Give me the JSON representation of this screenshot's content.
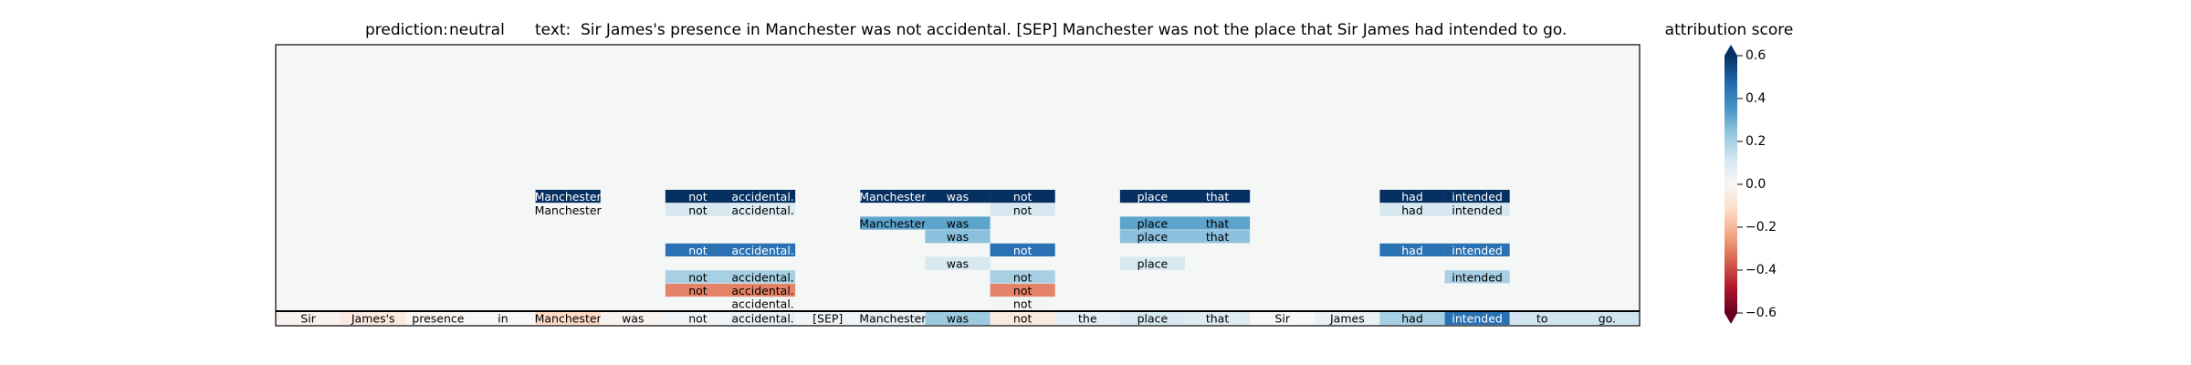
{
  "header": {
    "prediction_label": "prediction:",
    "prediction_value": "neutral",
    "text_label": "text:",
    "text_value": "Sir James's presence in Manchester was not accidental. [SEP] Manchester was not the place that Sir James had intended to go."
  },
  "colorbar": {
    "title": "attribution score",
    "ticks": [
      0.6,
      0.4,
      0.2,
      0.0,
      -0.2,
      -0.4,
      -0.6
    ],
    "tick_labels": [
      "0.6",
      "0.4",
      "0.2",
      "0.0",
      "−0.2",
      "−0.4",
      "−0.6"
    ],
    "colormap": "RdBu",
    "extend": "both"
  },
  "chart_data": {
    "type": "heatmap",
    "title": "prediction:  neutral     text:  Sir James's presence in Manchester was not accidental. [SEP] Manchester was not the place that Sir James had intended to go.",
    "tokens": [
      "Sir",
      "James's",
      "presence",
      "in",
      "Manchester",
      "was",
      "not",
      "accidental.",
      "[SEP]",
      "Manchester",
      "was",
      "not",
      "the",
      "place",
      "that",
      "Sir",
      "James",
      "had",
      "intended",
      "to",
      "go."
    ],
    "color_range": [
      -0.6,
      0.6
    ],
    "base_row": [
      -0.02,
      -0.06,
      -0.01,
      0.0,
      -0.12,
      -0.02,
      0.02,
      0.05,
      0.02,
      0.05,
      0.22,
      -0.06,
      0.06,
      0.1,
      0.08,
      0.0,
      0.04,
      0.2,
      0.45,
      0.12,
      0.12
    ],
    "cells": [
      {
        "row": 1,
        "col": 4,
        "text": "Manchester",
        "value": 0.6
      },
      {
        "row": 1,
        "col": 6,
        "text": "not",
        "value": 0.6
      },
      {
        "row": 1,
        "col": 7,
        "text": "accidental.",
        "value": 0.6
      },
      {
        "row": 1,
        "col": 9,
        "text": "Manchester",
        "value": 0.6
      },
      {
        "row": 1,
        "col": 10,
        "text": "was",
        "value": 0.6
      },
      {
        "row": 1,
        "col": 11,
        "text": "not",
        "value": 0.6
      },
      {
        "row": 1,
        "col": 13,
        "text": "place",
        "value": 0.6
      },
      {
        "row": 1,
        "col": 14,
        "text": "that",
        "value": 0.6
      },
      {
        "row": 1,
        "col": 17,
        "text": "had",
        "value": 0.6
      },
      {
        "row": 1,
        "col": 18,
        "text": "intended",
        "value": 0.6
      },
      {
        "row": 2,
        "col": 4,
        "text": "Manchester",
        "value": 0.01
      },
      {
        "row": 2,
        "col": 6,
        "text": "not",
        "value": 0.1
      },
      {
        "row": 2,
        "col": 7,
        "text": "accidental.",
        "value": 0.08
      },
      {
        "row": 2,
        "col": 11,
        "text": "not",
        "value": 0.1
      },
      {
        "row": 2,
        "col": 17,
        "text": "had",
        "value": 0.1
      },
      {
        "row": 2,
        "col": 18,
        "text": "intended",
        "value": 0.1
      },
      {
        "row": 3,
        "col": 9,
        "text": "Manchester",
        "value": 0.32
      },
      {
        "row": 3,
        "col": 10,
        "text": "was",
        "value": 0.32
      },
      {
        "row": 3,
        "col": 13,
        "text": "place",
        "value": 0.32
      },
      {
        "row": 3,
        "col": 14,
        "text": "that",
        "value": 0.32
      },
      {
        "row": 4,
        "col": 10,
        "text": "was",
        "value": 0.25
      },
      {
        "row": 4,
        "col": 13,
        "text": "place",
        "value": 0.25
      },
      {
        "row": 4,
        "col": 14,
        "text": "that",
        "value": 0.25
      },
      {
        "row": 5,
        "col": 6,
        "text": "not",
        "value": 0.45
      },
      {
        "row": 5,
        "col": 7,
        "text": "accidental.",
        "value": 0.45
      },
      {
        "row": 5,
        "col": 11,
        "text": "not",
        "value": 0.45
      },
      {
        "row": 5,
        "col": 17,
        "text": "had",
        "value": 0.45
      },
      {
        "row": 5,
        "col": 18,
        "text": "intended",
        "value": 0.45
      },
      {
        "row": 6,
        "col": 10,
        "text": "was",
        "value": 0.1
      },
      {
        "row": 6,
        "col": 13,
        "text": "place",
        "value": 0.1
      },
      {
        "row": 7,
        "col": 6,
        "text": "not",
        "value": 0.2
      },
      {
        "row": 7,
        "col": 7,
        "text": "accidental.",
        "value": 0.2
      },
      {
        "row": 7,
        "col": 11,
        "text": "not",
        "value": 0.2
      },
      {
        "row": 7,
        "col": 18,
        "text": "intended",
        "value": 0.2
      },
      {
        "row": 8,
        "col": 6,
        "text": "not",
        "value": -0.3
      },
      {
        "row": 8,
        "col": 7,
        "text": "accidental.",
        "value": -0.3
      },
      {
        "row": 8,
        "col": 11,
        "text": "not",
        "value": -0.3
      },
      {
        "row": 9,
        "col": 7,
        "text": "accidental.",
        "value": 0.01
      },
      {
        "row": 9,
        "col": 11,
        "text": "not",
        "value": 0.01
      }
    ],
    "grid": false,
    "legend": "right"
  }
}
